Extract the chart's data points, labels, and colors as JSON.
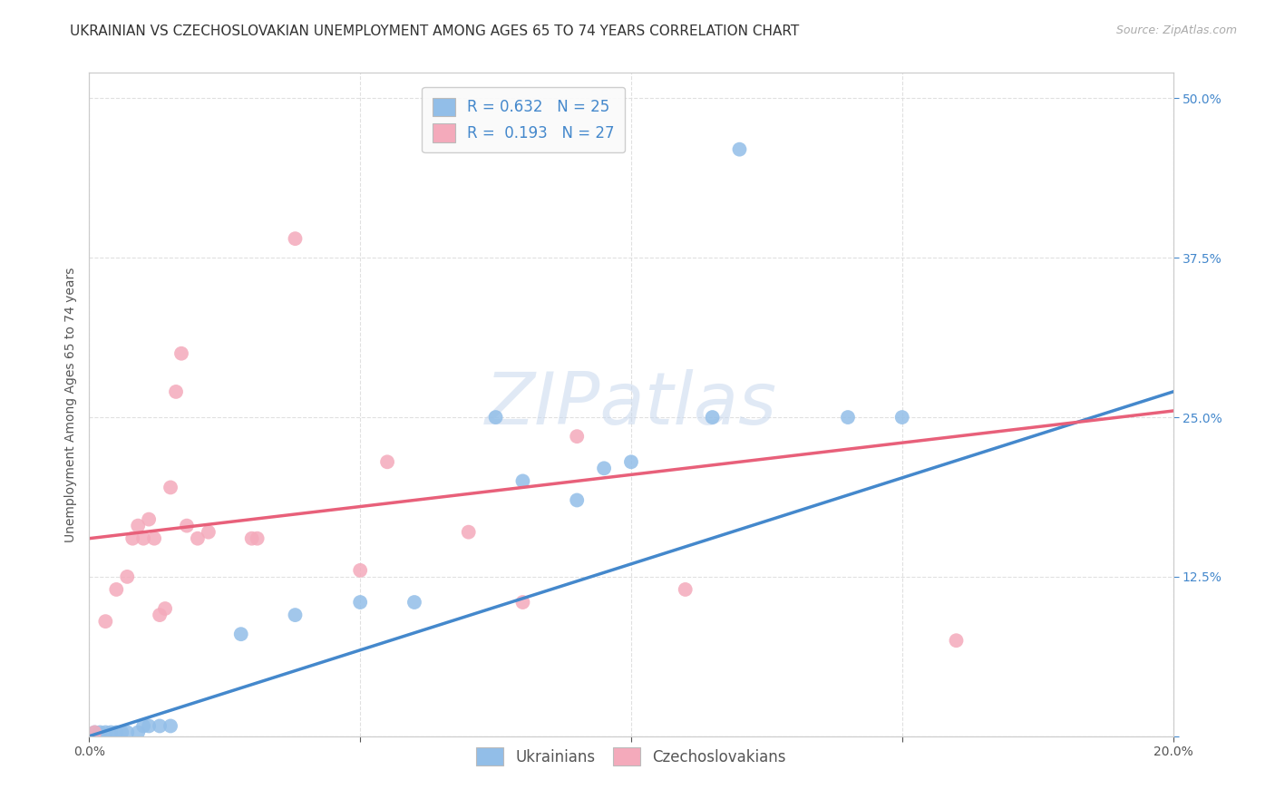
{
  "title": "UKRAINIAN VS CZECHOSLOVAKIAN UNEMPLOYMENT AMONG AGES 65 TO 74 YEARS CORRELATION CHART",
  "source": "Source: ZipAtlas.com",
  "ylabel": "Unemployment Among Ages 65 to 74 years",
  "xlim": [
    0.0,
    0.2
  ],
  "ylim": [
    0.0,
    0.52
  ],
  "xticks": [
    0.0,
    0.05,
    0.1,
    0.15,
    0.2
  ],
  "xticklabels": [
    "0.0%",
    "",
    "",
    "",
    "20.0%"
  ],
  "yticks": [
    0.0,
    0.125,
    0.25,
    0.375,
    0.5
  ],
  "right_yticklabels": [
    "",
    "12.5%",
    "25.0%",
    "37.5%",
    "50.0%"
  ],
  "ukrainian_R": "0.632",
  "ukrainian_N": "25",
  "czechoslovakian_R": "0.193",
  "czechoslovakian_N": "27",
  "ukrainian_color": "#92BEE8",
  "czechoslovakian_color": "#F4AABB",
  "ukrainian_line_color": "#4488CC",
  "czechoslovakian_line_color": "#E8607A",
  "watermark_color": "#C8D8EE",
  "ukrainian_line": [
    0.0,
    0.0,
    0.2,
    0.27
  ],
  "czechoslovakian_line": [
    0.0,
    0.155,
    0.2,
    0.255
  ],
  "ukrainian_points": [
    [
      0.001,
      0.003
    ],
    [
      0.002,
      0.003
    ],
    [
      0.003,
      0.003
    ],
    [
      0.004,
      0.003
    ],
    [
      0.005,
      0.003
    ],
    [
      0.006,
      0.003
    ],
    [
      0.007,
      0.003
    ],
    [
      0.009,
      0.003
    ],
    [
      0.01,
      0.008
    ],
    [
      0.011,
      0.008
    ],
    [
      0.013,
      0.008
    ],
    [
      0.015,
      0.008
    ],
    [
      0.028,
      0.08
    ],
    [
      0.038,
      0.095
    ],
    [
      0.05,
      0.105
    ],
    [
      0.06,
      0.105
    ],
    [
      0.075,
      0.25
    ],
    [
      0.08,
      0.2
    ],
    [
      0.09,
      0.185
    ],
    [
      0.095,
      0.21
    ],
    [
      0.1,
      0.215
    ],
    [
      0.115,
      0.25
    ],
    [
      0.14,
      0.25
    ],
    [
      0.12,
      0.46
    ],
    [
      0.15,
      0.25
    ]
  ],
  "czechoslovakian_points": [
    [
      0.001,
      0.003
    ],
    [
      0.003,
      0.09
    ],
    [
      0.005,
      0.115
    ],
    [
      0.007,
      0.125
    ],
    [
      0.008,
      0.155
    ],
    [
      0.009,
      0.165
    ],
    [
      0.01,
      0.155
    ],
    [
      0.011,
      0.17
    ],
    [
      0.012,
      0.155
    ],
    [
      0.013,
      0.095
    ],
    [
      0.014,
      0.1
    ],
    [
      0.015,
      0.195
    ],
    [
      0.016,
      0.27
    ],
    [
      0.017,
      0.3
    ],
    [
      0.018,
      0.165
    ],
    [
      0.02,
      0.155
    ],
    [
      0.022,
      0.16
    ],
    [
      0.03,
      0.155
    ],
    [
      0.031,
      0.155
    ],
    [
      0.038,
      0.39
    ],
    [
      0.05,
      0.13
    ],
    [
      0.055,
      0.215
    ],
    [
      0.07,
      0.16
    ],
    [
      0.08,
      0.105
    ],
    [
      0.09,
      0.235
    ],
    [
      0.11,
      0.115
    ],
    [
      0.16,
      0.075
    ]
  ],
  "background_color": "#FFFFFF",
  "grid_color": "#DDDDDD",
  "title_fontsize": 11,
  "axis_label_fontsize": 10,
  "tick_fontsize": 10,
  "legend_fontsize": 12
}
